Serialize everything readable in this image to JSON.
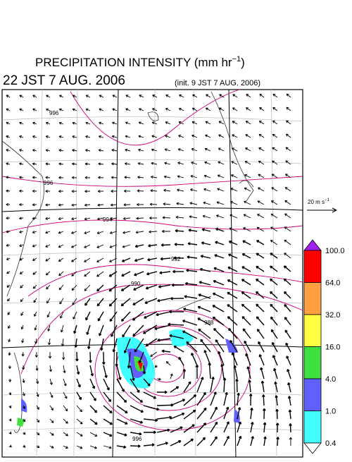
{
  "header": {
    "title": "PRECIPITATION INTENSITY (mm hr",
    "title_exponent": "−1",
    "title_close": ")",
    "valid_time": "22 JST 7 AUG. 2006",
    "init_time": "(init. 9 JST 7 AUG. 2006)"
  },
  "wind_scale": {
    "label": "20 m s",
    "exponent": "−1"
  },
  "colorbar": {
    "labels": [
      "100.0",
      "64.0",
      "32.0",
      "16.0",
      "4.0",
      "1.0",
      "0.4"
    ],
    "colors": [
      "#a020f0",
      "#ff0000",
      "#ffa040",
      "#ffff40",
      "#40e040",
      "#6060ff",
      "#40ffff",
      "#ffffff"
    ]
  },
  "isobars": [
    "996",
    "994",
    "992",
    "990",
    "988",
    "996",
    "996"
  ]
}
